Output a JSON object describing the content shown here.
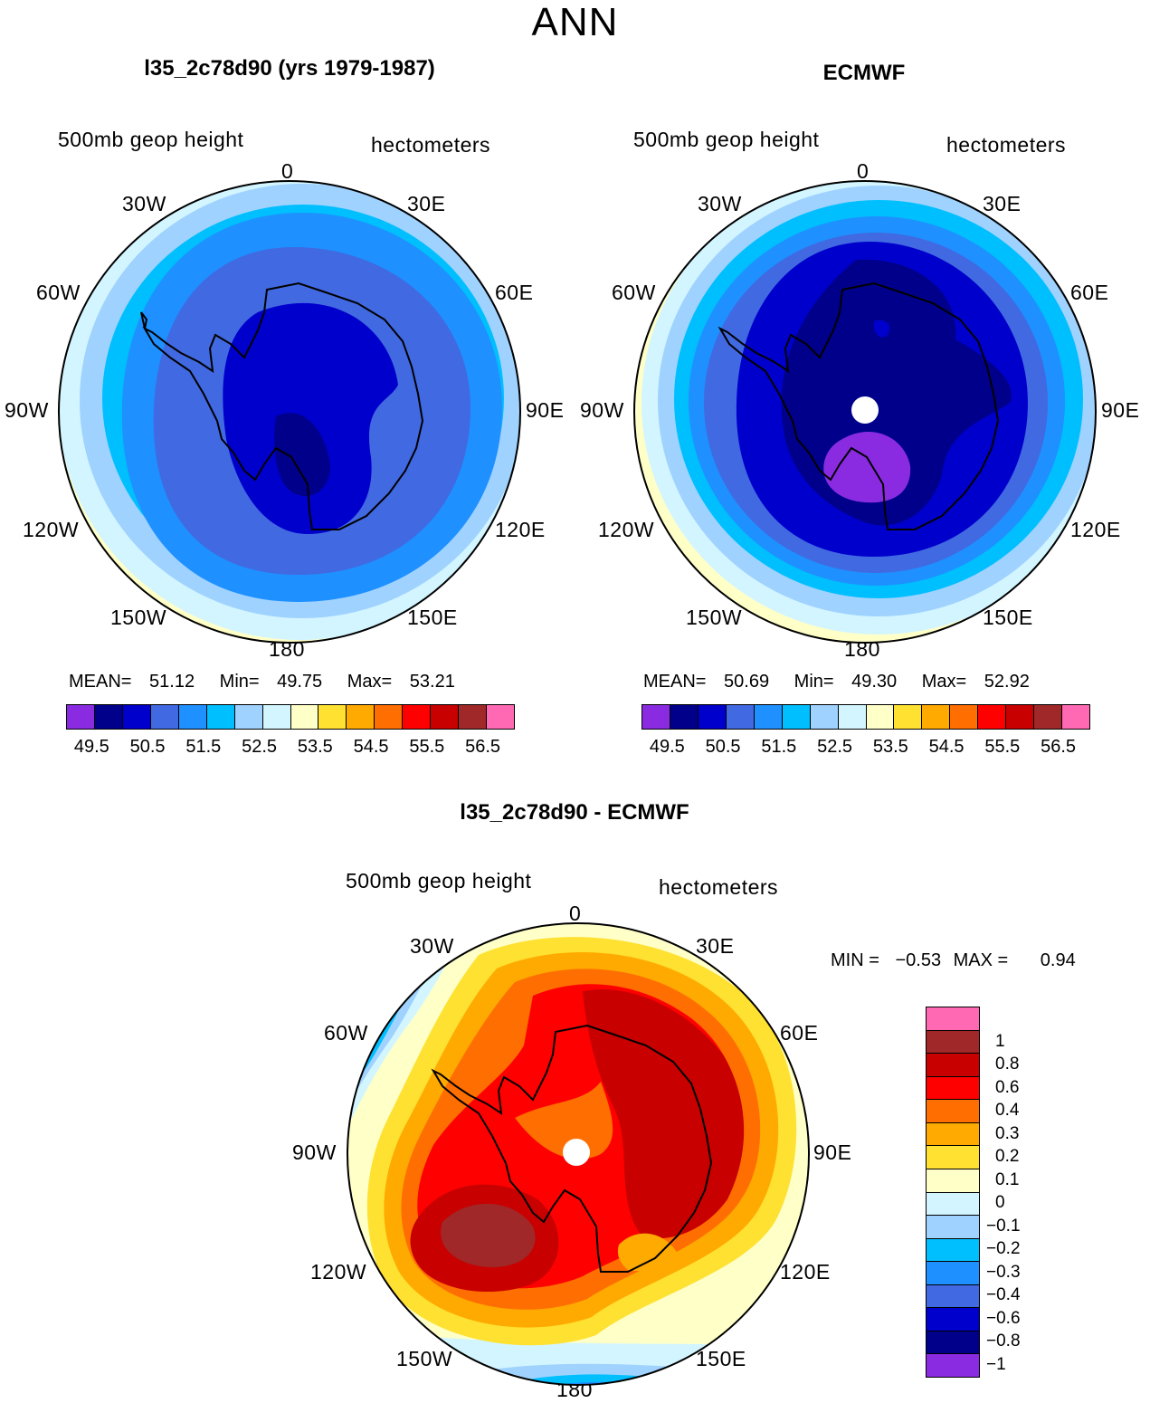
{
  "main_title": "ANN",
  "panels": [
    {
      "title": "l35_2c78d90 (yrs 1979-1987)",
      "field_label": "500mb  geop  height",
      "units_label": "hectometers",
      "stats": {
        "mean_label": "MEAN=",
        "mean": "51.12",
        "min_label": "Min=",
        "min": "49.75",
        "max_label": "Max=",
        "max": "53.21"
      },
      "color_bins": [
        "#8a2be2",
        "#00008b",
        "#0000cd",
        "#4169e1",
        "#1e90ff",
        "#00bfff",
        "#a0d2ff",
        "#d2f5ff",
        "#ffffc8",
        "#ffe132",
        "#ffaa00",
        "#ff6e00",
        "#ff0000",
        "#c80000",
        "#a02828",
        "#ff69b4"
      ],
      "colorbar_ticks": [
        "49.5",
        "50.5",
        "51.5",
        "52.5",
        "53.5",
        "54.5",
        "55.5",
        "56.5"
      ]
    },
    {
      "title": "ECMWF",
      "field_label": "500mb  geop  height",
      "units_label": "hectometers",
      "stats": {
        "mean_label": "MEAN=",
        "mean": "50.69",
        "min_label": "Min=",
        "min": "49.30",
        "max_label": "Max=",
        "max": "52.92"
      },
      "color_bins": [
        "#8a2be2",
        "#00008b",
        "#0000cd",
        "#4169e1",
        "#1e90ff",
        "#00bfff",
        "#a0d2ff",
        "#d2f5ff",
        "#ffffc8",
        "#ffe132",
        "#ffaa00",
        "#ff6e00",
        "#ff0000",
        "#c80000",
        "#a02828",
        "#ff69b4"
      ],
      "colorbar_ticks": [
        "49.5",
        "50.5",
        "51.5",
        "52.5",
        "53.5",
        "54.5",
        "55.5",
        "56.5"
      ]
    }
  ],
  "difference": {
    "title": "l35_2c78d90 - ECMWF",
    "field_label": "500mb  geop  height",
    "units_label": "hectometers",
    "min_label": "MIN =",
    "min": "−0.53",
    "max_label": "MAX =",
    "max": "0.94",
    "legend": [
      {
        "color": "#ff69b4",
        "label": ""
      },
      {
        "color": "#a02828",
        "label": "1"
      },
      {
        "color": "#c80000",
        "label": "0.8"
      },
      {
        "color": "#ff0000",
        "label": "0.6"
      },
      {
        "color": "#ff6e00",
        "label": "0.4"
      },
      {
        "color": "#ffaa00",
        "label": "0.3"
      },
      {
        "color": "#ffe132",
        "label": "0.2"
      },
      {
        "color": "#ffffc8",
        "label": "0.1"
      },
      {
        "color": "#d2f5ff",
        "label": "0"
      },
      {
        "color": "#a0d2ff",
        "label": "−0.1"
      },
      {
        "color": "#00bfff",
        "label": "−0.2"
      },
      {
        "color": "#1e90ff",
        "label": "−0.3"
      },
      {
        "color": "#4169e1",
        "label": "−0.4"
      },
      {
        "color": "#0000cd",
        "label": "−0.6"
      },
      {
        "color": "#00008b",
        "label": "−0.8"
      },
      {
        "color": "#8a2be2",
        "label": "−1"
      }
    ]
  },
  "longitude_labels": [
    "0",
    "30E",
    "60E",
    "90E",
    "120E",
    "150E",
    "180",
    "150W",
    "120W",
    "90W",
    "60W",
    "30W"
  ]
}
